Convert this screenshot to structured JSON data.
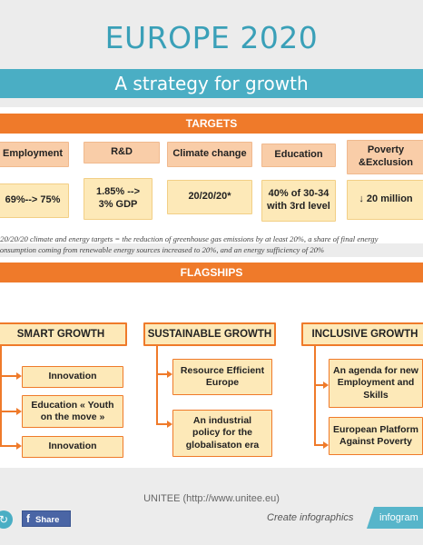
{
  "header": {
    "title": "EUROPE 2020",
    "subtitle": "A strategy for growth"
  },
  "targets": {
    "band_label": "TARGETS",
    "items": [
      {
        "name": "Employment",
        "value": "69%--> 75%"
      },
      {
        "name": "R&D",
        "value": "1.85% --> 3% GDP"
      },
      {
        "name": "Climate change",
        "value": "20/20/20*"
      },
      {
        "name": "Education",
        "value": "40% of 30-34 with 3rd level"
      },
      {
        "name": "Poverty &Exclusion",
        "value": "↓ 20 million"
      }
    ],
    "note_line1": "*20/20/20 climate and energy targets = the reduction of greenhouse gas emissions by at least 20%, a share of final energy",
    "note_line2": "consumption coming from renewable energy sources increased to 20%, and an energy sufficiency of 20%"
  },
  "flagships": {
    "band_label": "FLAGSHIPS",
    "groups": [
      {
        "title": "SMART GROWTH",
        "items": [
          "Innovation",
          "Education « Youth on the move »",
          "Innovation"
        ]
      },
      {
        "title": "SUSTAINABLE GROWTH",
        "items": [
          "Resource Efficient Europe",
          "An industrial policy for the globalisaton era"
        ]
      },
      {
        "title": "INCLUSIVE GROWTH",
        "items": [
          "An agenda for new Employment and Skills",
          "European Platform Against Poverty"
        ]
      }
    ]
  },
  "footer": {
    "source": "UNITEE (http://www.unitee.eu)",
    "share_label": "Share",
    "fb_glyph": "f",
    "share_glyph": "↻",
    "create_label": "Create infographics",
    "infogram_label": "infogram"
  },
  "colors": {
    "accent_teal": "#4aaec4",
    "accent_orange": "#ef7a2a",
    "box_fill": "#fde9b8"
  }
}
